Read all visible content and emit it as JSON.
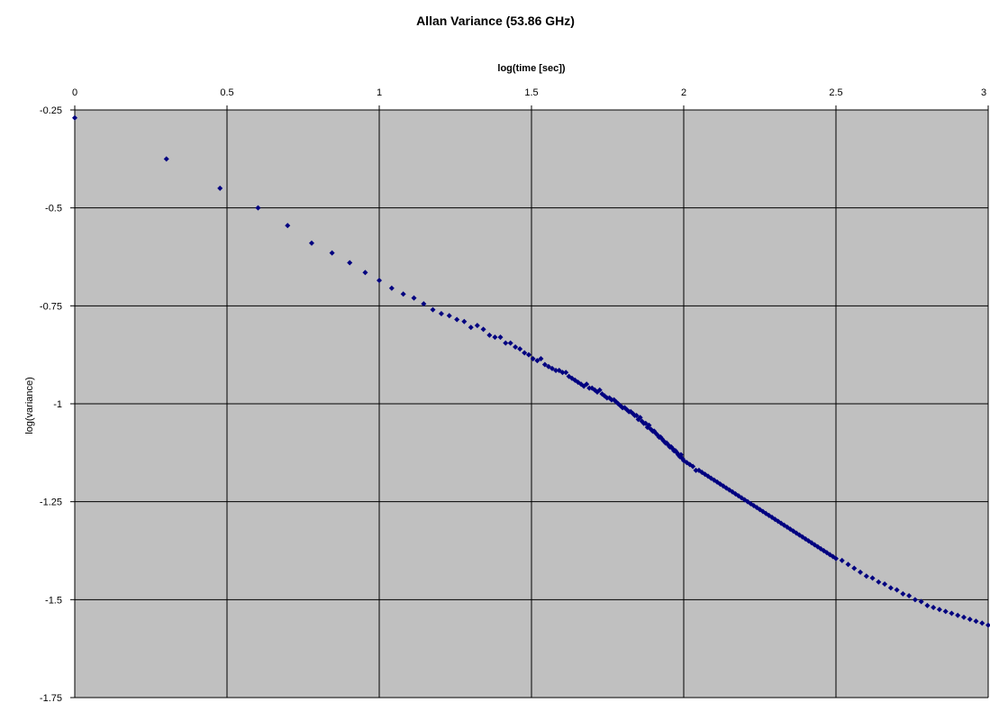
{
  "chart_data": {
    "type": "scatter",
    "title": "Allan Variance (53.86 GHz)",
    "xlabel": "log(time [sec])",
    "ylabel": "log(variance)",
    "xlim": [
      0,
      3
    ],
    "ylim": [
      -1.75,
      -0.25
    ],
    "x_ticks": [
      0,
      0.5,
      1,
      1.5,
      2,
      2.5,
      3
    ],
    "x_tick_labels": [
      "0",
      "0.5",
      "1",
      "1.5",
      "2",
      "2.5",
      "3"
    ],
    "y_ticks": [
      -0.25,
      -0.5,
      -0.75,
      -1,
      -1.25,
      -1.5,
      -1.75
    ],
    "y_tick_labels": [
      "-0.25",
      "-0.5",
      "-0.75",
      "-1",
      "-1.25",
      "-1.5",
      "-1.75"
    ],
    "x_axis_position": "top",
    "grid": true,
    "legend": "none",
    "colors": {
      "plot_background": "#c0c0c0",
      "marker": "#000080",
      "grid": "#000000"
    },
    "series": [
      {
        "marker": "diamond",
        "points": [
          [
            0.0,
            -0.27
          ],
          [
            0.301,
            -0.375
          ],
          [
            0.477,
            -0.45
          ],
          [
            0.602,
            -0.5
          ],
          [
            0.699,
            -0.545
          ],
          [
            0.778,
            -0.59
          ],
          [
            0.845,
            -0.615
          ],
          [
            0.903,
            -0.64
          ],
          [
            0.954,
            -0.665
          ],
          [
            1.0,
            -0.685
          ],
          [
            1.041,
            -0.705
          ],
          [
            1.079,
            -0.72
          ],
          [
            1.114,
            -0.73
          ],
          [
            1.146,
            -0.745
          ],
          [
            1.176,
            -0.76
          ],
          [
            1.204,
            -0.77
          ],
          [
            1.23,
            -0.775
          ],
          [
            1.255,
            -0.785
          ],
          [
            1.279,
            -0.79
          ],
          [
            1.301,
            -0.805
          ],
          [
            1.322,
            -0.8
          ],
          [
            1.342,
            -0.81
          ],
          [
            1.362,
            -0.825
          ],
          [
            1.38,
            -0.83
          ],
          [
            1.398,
            -0.83
          ],
          [
            1.415,
            -0.845
          ],
          [
            1.431,
            -0.845
          ],
          [
            1.447,
            -0.855
          ],
          [
            1.462,
            -0.86
          ],
          [
            1.477,
            -0.87
          ],
          [
            1.491,
            -0.875
          ],
          [
            1.505,
            -0.885
          ],
          [
            1.519,
            -0.89
          ],
          [
            1.531,
            -0.885
          ],
          [
            1.544,
            -0.9
          ],
          [
            1.556,
            -0.905
          ],
          [
            1.568,
            -0.91
          ],
          [
            1.58,
            -0.915
          ],
          [
            1.591,
            -0.915
          ],
          [
            1.602,
            -0.92
          ],
          [
            1.613,
            -0.92
          ],
          [
            1.623,
            -0.93
          ],
          [
            1.633,
            -0.935
          ],
          [
            1.643,
            -0.94
          ],
          [
            1.653,
            -0.945
          ],
          [
            1.663,
            -0.95
          ],
          [
            1.672,
            -0.955
          ],
          [
            1.681,
            -0.95
          ],
          [
            1.69,
            -0.96
          ],
          [
            1.699,
            -0.96
          ],
          [
            1.708,
            -0.965
          ],
          [
            1.716,
            -0.97
          ],
          [
            1.724,
            -0.965
          ],
          [
            1.732,
            -0.975
          ],
          [
            1.74,
            -0.98
          ],
          [
            1.748,
            -0.985
          ],
          [
            1.756,
            -0.985
          ],
          [
            1.763,
            -0.99
          ],
          [
            1.771,
            -0.99
          ],
          [
            1.778,
            -0.995
          ],
          [
            1.785,
            -1.0
          ],
          [
            1.792,
            -1.005
          ],
          [
            1.799,
            -1.01
          ],
          [
            1.806,
            -1.01
          ],
          [
            1.813,
            -1.015
          ],
          [
            1.82,
            -1.02
          ],
          [
            1.826,
            -1.02
          ],
          [
            1.833,
            -1.025
          ],
          [
            1.839,
            -1.03
          ],
          [
            1.845,
            -1.03
          ],
          [
            1.851,
            -1.04
          ],
          [
            1.857,
            -1.035
          ],
          [
            1.863,
            -1.045
          ],
          [
            1.869,
            -1.05
          ],
          [
            1.875,
            -1.05
          ],
          [
            1.881,
            -1.06
          ],
          [
            1.886,
            -1.055
          ],
          [
            1.892,
            -1.065
          ],
          [
            1.898,
            -1.07
          ],
          [
            1.903,
            -1.07
          ],
          [
            1.908,
            -1.075
          ],
          [
            1.914,
            -1.08
          ],
          [
            1.919,
            -1.085
          ],
          [
            1.924,
            -1.085
          ],
          [
            1.929,
            -1.09
          ],
          [
            1.934,
            -1.095
          ],
          [
            1.94,
            -1.1
          ],
          [
            1.944,
            -1.1
          ],
          [
            1.949,
            -1.105
          ],
          [
            1.954,
            -1.11
          ],
          [
            1.959,
            -1.11
          ],
          [
            1.964,
            -1.115
          ],
          [
            1.968,
            -1.12
          ],
          [
            1.973,
            -1.12
          ],
          [
            1.978,
            -1.125
          ],
          [
            1.982,
            -1.13
          ],
          [
            1.987,
            -1.135
          ],
          [
            1.991,
            -1.13
          ],
          [
            1.996,
            -1.14
          ],
          [
            2.0,
            -1.145
          ],
          [
            2.01,
            -1.15
          ],
          [
            2.02,
            -1.155
          ],
          [
            2.03,
            -1.16
          ],
          [
            2.04,
            -1.17
          ],
          [
            2.05,
            -1.17
          ],
          [
            2.06,
            -1.175
          ],
          [
            2.07,
            -1.18
          ],
          [
            2.08,
            -1.185
          ],
          [
            2.09,
            -1.19
          ],
          [
            2.1,
            -1.195
          ],
          [
            2.11,
            -1.2
          ],
          [
            2.12,
            -1.205
          ],
          [
            2.13,
            -1.21
          ],
          [
            2.14,
            -1.215
          ],
          [
            2.15,
            -1.22
          ],
          [
            2.16,
            -1.225
          ],
          [
            2.17,
            -1.23
          ],
          [
            2.18,
            -1.235
          ],
          [
            2.19,
            -1.24
          ],
          [
            2.2,
            -1.245
          ],
          [
            2.21,
            -1.25
          ],
          [
            2.22,
            -1.255
          ],
          [
            2.23,
            -1.26
          ],
          [
            2.24,
            -1.265
          ],
          [
            2.25,
            -1.27
          ],
          [
            2.26,
            -1.275
          ],
          [
            2.27,
            -1.28
          ],
          [
            2.28,
            -1.285
          ],
          [
            2.29,
            -1.29
          ],
          [
            2.3,
            -1.295
          ],
          [
            2.31,
            -1.3
          ],
          [
            2.32,
            -1.305
          ],
          [
            2.33,
            -1.31
          ],
          [
            2.34,
            -1.315
          ],
          [
            2.35,
            -1.32
          ],
          [
            2.36,
            -1.325
          ],
          [
            2.37,
            -1.33
          ],
          [
            2.38,
            -1.335
          ],
          [
            2.39,
            -1.34
          ],
          [
            2.4,
            -1.345
          ],
          [
            2.41,
            -1.35
          ],
          [
            2.42,
            -1.355
          ],
          [
            2.43,
            -1.36
          ],
          [
            2.44,
            -1.365
          ],
          [
            2.45,
            -1.37
          ],
          [
            2.46,
            -1.375
          ],
          [
            2.47,
            -1.38
          ],
          [
            2.48,
            -1.385
          ],
          [
            2.49,
            -1.39
          ],
          [
            2.5,
            -1.395
          ],
          [
            2.52,
            -1.4
          ],
          [
            2.54,
            -1.41
          ],
          [
            2.56,
            -1.42
          ],
          [
            2.58,
            -1.43
          ],
          [
            2.6,
            -1.44
          ],
          [
            2.62,
            -1.445
          ],
          [
            2.64,
            -1.455
          ],
          [
            2.66,
            -1.46
          ],
          [
            2.68,
            -1.47
          ],
          [
            2.7,
            -1.475
          ],
          [
            2.72,
            -1.485
          ],
          [
            2.74,
            -1.49
          ],
          [
            2.76,
            -1.5
          ],
          [
            2.78,
            -1.505
          ],
          [
            2.8,
            -1.515
          ],
          [
            2.82,
            -1.52
          ],
          [
            2.84,
            -1.525
          ],
          [
            2.86,
            -1.53
          ],
          [
            2.88,
            -1.535
          ],
          [
            2.9,
            -1.54
          ],
          [
            2.92,
            -1.545
          ],
          [
            2.94,
            -1.55
          ],
          [
            2.96,
            -1.555
          ],
          [
            2.98,
            -1.56
          ],
          [
            3.0,
            -1.565
          ]
        ]
      }
    ]
  }
}
